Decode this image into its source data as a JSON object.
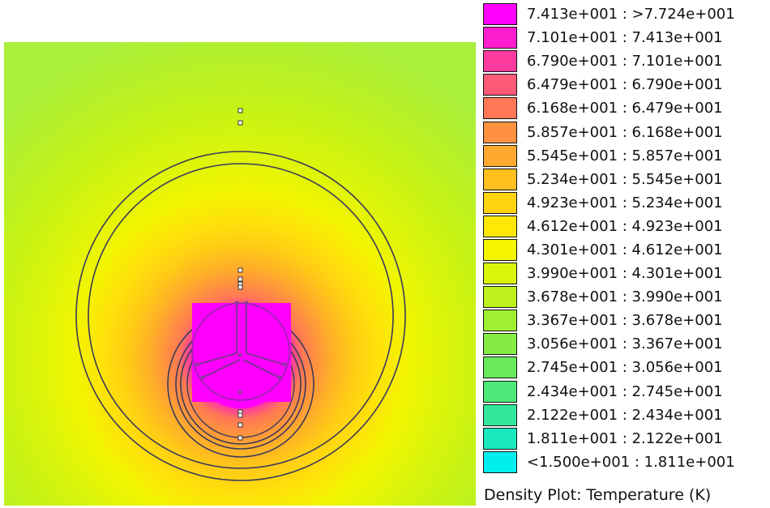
{
  "caption": "Density Plot: Temperature (K)",
  "legend": [
    {
      "label": "7.413e+001 : >7.724e+001",
      "color": "#ff00ff"
    },
    {
      "label": "7.101e+001 : 7.413e+001",
      "color": "#ff1ecf"
    },
    {
      "label": "6.790e+001 : 7.101e+001",
      "color": "#ff3ba0"
    },
    {
      "label": "6.479e+001 : 6.790e+001",
      "color": "#ff5a78"
    },
    {
      "label": "6.168e+001 : 6.479e+001",
      "color": "#ff7756"
    },
    {
      "label": "5.857e+001 : 6.168e+001",
      "color": "#ff9140"
    },
    {
      "label": "5.545e+001 : 5.857e+001",
      "color": "#ffa92f"
    },
    {
      "label": "5.234e+001 : 5.545e+001",
      "color": "#ffbf1f"
    },
    {
      "label": "4.923e+001 : 5.234e+001",
      "color": "#ffd40f"
    },
    {
      "label": "4.612e+001 : 4.923e+001",
      "color": "#ffe805"
    },
    {
      "label": "4.301e+001 : 4.612e+001",
      "color": "#f5f500"
    },
    {
      "label": "3.990e+001 : 4.301e+001",
      "color": "#d9f50a"
    },
    {
      "label": "3.678e+001 : 3.990e+001",
      "color": "#bdf21c"
    },
    {
      "label": "3.367e+001 : 3.678e+001",
      "color": "#a0ef30"
    },
    {
      "label": "3.056e+001 : 3.367e+001",
      "color": "#84ec45"
    },
    {
      "label": "2.745e+001 : 3.056e+001",
      "color": "#68ea5c"
    },
    {
      "label": "2.434e+001 : 2.745e+001",
      "color": "#4de87a"
    },
    {
      "label": "2.122e+001 : 2.434e+001",
      "color": "#33e89c"
    },
    {
      "label": "1.811e+001 : 2.122e+001",
      "color": "#1ae9c0"
    },
    {
      "label": "<1.500e+001 : 1.811e+001",
      "color": "#00eeee"
    }
  ],
  "plot": {
    "background_color": "#aef242",
    "core_color": "#ff00ff",
    "outline_color": "#3a3a5a"
  }
}
